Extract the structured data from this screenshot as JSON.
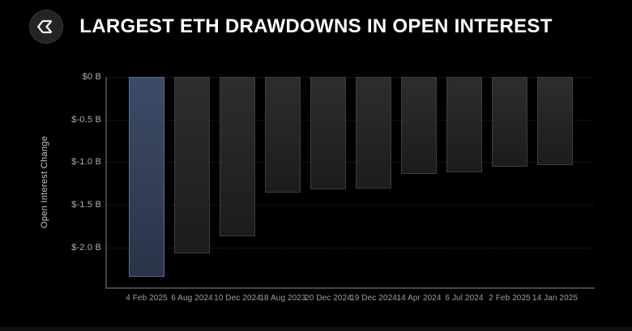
{
  "header": {
    "title": "LARGEST ETH DRAWDOWNS IN OPEN INTEREST",
    "logo_icon": "sigma-logo-icon"
  },
  "chart_data": {
    "type": "bar",
    "title": "LARGEST ETH DRAWDOWNS IN OPEN INTEREST",
    "categories": [
      "4 Feb 2025",
      "6 Aug 2024",
      "10 Dec 2024",
      "18 Aug 2023",
      "20 Dec 2024",
      "19 Dec 2024",
      "14 Apr 2024",
      "6 Jul 2024",
      "2 Feb 2025",
      "14 Jan 2025"
    ],
    "values": [
      -2.35,
      -2.07,
      -1.87,
      -1.36,
      -1.32,
      -1.31,
      -1.14,
      -1.12,
      -1.05,
      -1.04
    ],
    "unit": "$ billions",
    "xlabel": "",
    "ylabel": "Open Interest Change",
    "ylim": [
      -2.47,
      0
    ],
    "yticks": [
      "$0 B",
      "$-0.5 B",
      "$-1.0 B",
      "$-1.5 B",
      "$-2.0 B"
    ],
    "ytick_values": [
      0,
      -0.5,
      -1.0,
      -1.5,
      -2.0
    ],
    "grid": true,
    "legend": false,
    "highlight_index": 0,
    "colors": {
      "background": "#000000",
      "highlight_bar": "#36425c",
      "highlight_bar_border": "#5a6a8e",
      "default_bar": "#262626",
      "default_bar_border": "#3d3d3d",
      "axis_line": "#454545",
      "tick_text": "#a8a8a8",
      "title_text": "#ffffff"
    }
  }
}
